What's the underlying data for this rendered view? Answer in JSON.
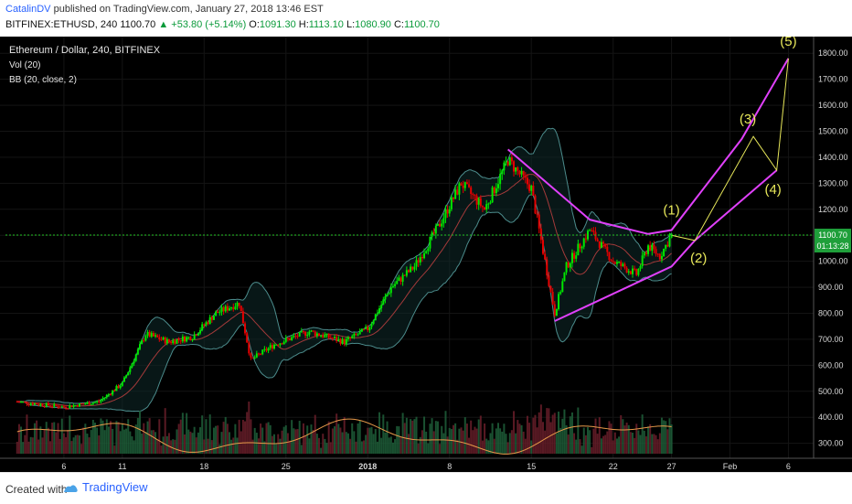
{
  "header": {
    "author": "CatalinDV",
    "published": " published on TradingView.com, January 27, 2018 13:46 EST",
    "symbol": "BITFINEX:ETHUSD, 240",
    "last": "1100.70",
    "change": "▲ +53.80 (+5.14%)",
    "o_label": "O:",
    "o": "1091.30",
    "h_label": "H:",
    "h": "1113.10",
    "l_label": "L:",
    "l": "1080.90",
    "c_label": "C:",
    "c": "1100.70"
  },
  "legend": {
    "title": "Ethereum / Dollar, 240, BITFINEX",
    "vol": "Vol (20)",
    "bb": "BB (20, close, 2)"
  },
  "price_box": {
    "price": "1100.70",
    "countdown": "01:13:28"
  },
  "footer": {
    "created": "Created with",
    "brand": "TradingView"
  },
  "colors": {
    "background": "#000000",
    "up": "#00e600",
    "down": "#e60000",
    "wave": "#e040fb",
    "projection": "#e8e85a",
    "price_line": "#22c322",
    "bb_band": "#4c8c8c",
    "vol_ma": "#e89a4a"
  },
  "chart_data": {
    "type": "candlestick",
    "title": "Ethereum / Dollar, 240, BITFINEX",
    "x_ticks": [
      "6",
      "11",
      "18",
      "25",
      "2018",
      "8",
      "15",
      "22",
      "27",
      "Feb",
      "6"
    ],
    "y_ticks": [
      "300.00",
      "400.00",
      "500.00",
      "600.00",
      "700.00",
      "800.00",
      "900.00",
      "1000.00",
      "1100.00",
      "1200.00",
      "1300.00",
      "1400.00",
      "1500.00",
      "1600.00",
      "1700.00",
      "1800.00"
    ],
    "ylim": [
      260,
      1850
    ],
    "current_price": 1100.7,
    "price_path": [
      {
        "date": "Dec 2",
        "price": 460
      },
      {
        "date": "Dec 6",
        "price": 440
      },
      {
        "date": "Dec 9",
        "price": 460
      },
      {
        "date": "Dec 11",
        "price": 530
      },
      {
        "date": "Dec 13",
        "price": 720
      },
      {
        "date": "Dec 15",
        "price": 690
      },
      {
        "date": "Dec 17",
        "price": 710
      },
      {
        "date": "Dec 19",
        "price": 800
      },
      {
        "date": "Dec 21",
        "price": 840
      },
      {
        "date": "Dec 22",
        "price": 620
      },
      {
        "date": "Dec 24",
        "price": 680
      },
      {
        "date": "Dec 27",
        "price": 730
      },
      {
        "date": "Dec 30",
        "price": 690
      },
      {
        "date": "Jan 1",
        "price": 740
      },
      {
        "date": "Jan 3",
        "price": 900
      },
      {
        "date": "Jan 5",
        "price": 980
      },
      {
        "date": "Jan 7",
        "price": 1130
      },
      {
        "date": "Jan 9",
        "price": 1300
      },
      {
        "date": "Jan 11",
        "price": 1200
      },
      {
        "date": "Jan 13",
        "price": 1390
      },
      {
        "date": "Jan 15",
        "price": 1280
      },
      {
        "date": "Jan 17",
        "price": 800
      },
      {
        "date": "Jan 18",
        "price": 980
      },
      {
        "date": "Jan 20",
        "price": 1120
      },
      {
        "date": "Jan 22",
        "price": 1000
      },
      {
        "date": "Jan 24",
        "price": 950
      },
      {
        "date": "Jan 25",
        "price": 1060
      },
      {
        "date": "Jan 26",
        "price": 1020
      },
      {
        "date": "Jan 27",
        "price": 1100
      }
    ],
    "volume_ma_note": "",
    "wave_lines": [
      {
        "name": "",
        "points": [
          {
            "date": "Jan 13",
            "price": 1430
          },
          {
            "date": "Jan 20",
            "price": 1160
          },
          {
            "date": "Jan 25",
            "price": 1105
          },
          {
            "date": "Jan 27",
            "price": 1120
          },
          {
            "date": "Feb 2",
            "price": 1470
          },
          {
            "date": "Feb 6",
            "price": 1780
          }
        ]
      },
      {
        "name": "",
        "points": [
          {
            "date": "Jan 17",
            "price": 770
          },
          {
            "date": "Jan 27",
            "price": 980
          },
          {
            "date": "Jan 29",
            "price": 1080
          },
          {
            "date": "Feb 5",
            "price": 1350
          }
        ]
      }
    ],
    "projection_points": [
      {
        "label": "(1)",
        "date": "Jan 27",
        "price": 1130
      },
      {
        "label": "(2)",
        "date": "Jan 29",
        "price": 1080
      },
      {
        "label": "(3)",
        "date": "Feb 3",
        "price": 1480
      },
      {
        "label": "(4)",
        "date": "Feb 5",
        "price": 1350
      },
      {
        "label": "(5)",
        "date": "Feb 6",
        "price": 1780
      }
    ]
  }
}
